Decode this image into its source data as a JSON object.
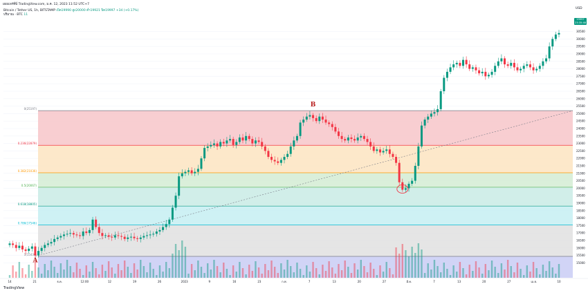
{
  "header": {
    "published": "เผยแพร่ที่นี่ TradingView.com, ม.ค. 12, 2023 11:52 UTC+7",
    "symbol_line": "Bitcoin / Tether US, 1h, BITSTAMP",
    "ohlc": "เปิด19990 สูง20000 ต่ำ19921 ปิด19997 +34 (+0.17%)",
    "volume_label": "ปริมาณ · BTC",
    "volume_value": "11",
    "currency": "USD",
    "last_price": "19997",
    "last_price_sub": "23:35:48"
  },
  "footer": {
    "brand": "TradingView"
  },
  "colors": {
    "up": "#089981",
    "down": "#f23645",
    "grid": "#f0f3fa",
    "fib_0": "#f7c5c9",
    "fib_236": "#fde4c1",
    "fib_382": "#d4ecd3",
    "fib_5": "#c9ebe5",
    "fib_618": "#c6eef2",
    "fib_786": "#e0e0e0",
    "fib_1": "#c9cdf5"
  },
  "chart_data": {
    "type": "candlestick",
    "title": "",
    "xlabel": "",
    "ylabel": "",
    "ylim": [
      14000,
      31500
    ],
    "y_ticks": [
      15000,
      15500,
      16000,
      16500,
      17000,
      17500,
      18000,
      18500,
      19000,
      19500,
      20000,
      20500,
      21000,
      21500,
      22000,
      22500,
      23000,
      23500,
      24000,
      24500,
      25000,
      25500,
      26000,
      26500,
      27000,
      27500,
      28000,
      28500,
      29000,
      29500,
      30000,
      30500
    ],
    "x_tick_labels": [
      "14",
      "21",
      "ธ.ค.",
      "12:00",
      "12",
      "19",
      "26",
      "2023",
      "9",
      "16",
      "23",
      "ก.พ.",
      "7",
      "13",
      "20",
      "27",
      "มี.ค.",
      "7",
      "13",
      "20",
      "27",
      "เม.ย.",
      "10"
    ],
    "fib_levels": [
      {
        "label": "1(15436)",
        "level": 1,
        "price": 15436
      },
      {
        "label": "0.786(17546)",
        "level": 0.786,
        "price": 17546
      },
      {
        "label": "0.618(18805)",
        "level": 0.618,
        "price": 18805
      },
      {
        "label": "0.5(20067)",
        "level": 0.5,
        "price": 20067
      },
      {
        "label": "0.382(21036)",
        "level": 0.382,
        "price": 21036
      },
      {
        "label": "0.236(22879)",
        "level": 0.236,
        "price": 22879
      },
      {
        "label": "0(25197)",
        "level": 0,
        "price": 25197
      }
    ],
    "annotations": [
      {
        "label": "A",
        "x_index": 8,
        "price": 15500
      },
      {
        "label": "B",
        "x_index": 95,
        "price": 25300
      }
    ],
    "close": [
      16300,
      16200,
      16000,
      16150,
      15900,
      15800,
      15950,
      16100,
      15500,
      15800,
      16000,
      16200,
      16300,
      16400,
      16600,
      16700,
      16800,
      16900,
      16950,
      17000,
      16900,
      16850,
      16800,
      17100,
      17000,
      17200,
      17900,
      17400,
      17000,
      16800,
      16850,
      16750,
      16700,
      16850,
      16800,
      16750,
      16600,
      16700,
      16750,
      16650,
      16600,
      16700,
      16800,
      16850,
      16900,
      16950,
      17100,
      17200,
      17400,
      17600,
      17900,
      18700,
      19500,
      20800,
      21000,
      21100,
      21200,
      21000,
      21100,
      21300,
      22000,
      22700,
      22800,
      22900,
      23000,
      22800,
      23100,
      23000,
      23200,
      23300,
      22900,
      23100,
      23400,
      23200,
      23500,
      23300,
      23000,
      23200,
      23100,
      22800,
      22500,
      22100,
      21900,
      21800,
      21700,
      21900,
      22100,
      22300,
      22800,
      23200,
      23500,
      24400,
      24600,
      24800,
      24900,
      24700,
      24500,
      24800,
      24600,
      24400,
      24300,
      24100,
      23800,
      23500,
      23300,
      23200,
      23400,
      23300,
      23200,
      23400,
      23500,
      23300,
      23100,
      22800,
      22500,
      22600,
      22400,
      22500,
      22600,
      22300,
      22100,
      21700,
      20400,
      19900,
      20000,
      20300,
      20500,
      21500,
      22800,
      24200,
      24600,
      24800,
      25000,
      25100,
      25300,
      26500,
      27400,
      27800,
      28100,
      28300,
      28400,
      28200,
      28600,
      28300,
      28000,
      28100,
      27900,
      27700,
      27800,
      27500,
      27600,
      27800,
      28200,
      28500,
      28700,
      28300,
      28200,
      28400,
      28100,
      27900,
      28000,
      28200,
      28300,
      28100,
      27900,
      28000,
      28200,
      28500,
      28700,
      29500,
      30000,
      30300,
      30400
    ]
  }
}
